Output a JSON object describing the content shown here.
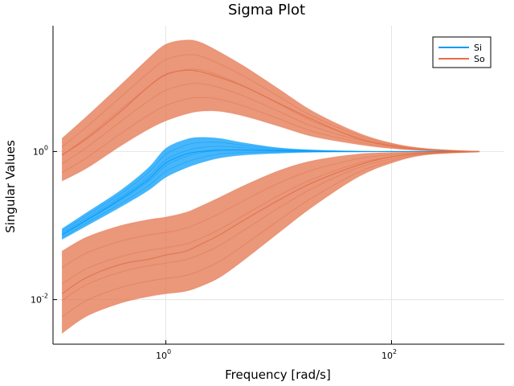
{
  "chart_data": {
    "type": "line",
    "title": "Sigma Plot",
    "xlabel": "Frequency [rad/s]",
    "ylabel": "Singular Values",
    "xscale": "log10",
    "yscale": "log10",
    "xlim": [
      0.1,
      1000
    ],
    "ylim": [
      0.0025,
      50
    ],
    "xticks": [
      {
        "value": 1,
        "base": "10",
        "exp": "0"
      },
      {
        "value": 100,
        "base": "10",
        "exp": "2"
      }
    ],
    "yticks": [
      {
        "value": 1,
        "base": "10",
        "exp": "0"
      },
      {
        "value": 0.01,
        "base": "10",
        "exp": "-2"
      }
    ],
    "grid": true,
    "legend_position": "top-right",
    "series": [
      {
        "name": "Si",
        "color": "#009af9",
        "x": [
          0.12,
          0.2,
          0.4,
          0.7,
          1.0,
          1.5,
          2.0,
          3.0,
          5.0,
          10,
          20,
          50,
          100,
          200,
          600
        ],
        "band_upper": [
          0.09,
          0.15,
          0.3,
          0.6,
          1.1,
          1.45,
          1.55,
          1.5,
          1.3,
          1.12,
          1.05,
          1.01,
          1.0,
          1.0,
          1.0
        ],
        "band_lower": [
          0.065,
          0.1,
          0.18,
          0.3,
          0.45,
          0.6,
          0.7,
          0.82,
          0.9,
          0.95,
          0.98,
          0.99,
          1.0,
          1.0,
          1.0
        ],
        "center": [
          0.075,
          0.12,
          0.23,
          0.42,
          0.7,
          0.92,
          1.0,
          1.05,
          1.05,
          1.03,
          1.01,
          1.0,
          1.0,
          1.0,
          1.0
        ]
      },
      {
        "name": "So",
        "color": "#e26f46",
        "x": [
          0.12,
          0.2,
          0.4,
          0.7,
          1.0,
          1.5,
          2.0,
          3.0,
          5.0,
          10,
          20,
          50,
          100,
          200,
          600
        ],
        "band_upper": [
          1.5,
          3.0,
          8.0,
          18.0,
          28.0,
          32.0,
          30.0,
          22.0,
          14.0,
          7.0,
          3.5,
          1.8,
          1.3,
          1.1,
          1.0
        ],
        "band_lower": [
          0.4,
          0.6,
          1.2,
          2.0,
          2.6,
          3.2,
          3.5,
          3.5,
          3.0,
          2.2,
          1.6,
          1.25,
          1.1,
          1.03,
          1.0
        ],
        "center": [
          0.9,
          1.5,
          3.5,
          7.5,
          11.0,
          12.5,
          12.0,
          10.0,
          7.5,
          4.5,
          2.7,
          1.5,
          1.2,
          1.05,
          1.0
        ]
      },
      {
        "name": "So",
        "color": "#e26f46",
        "x": [
          0.12,
          0.2,
          0.4,
          0.7,
          1.0,
          1.5,
          2.0,
          3.0,
          5.0,
          10,
          20,
          50,
          100,
          200,
          600
        ],
        "band_upper": [
          0.045,
          0.07,
          0.1,
          0.12,
          0.13,
          0.15,
          0.18,
          0.24,
          0.35,
          0.55,
          0.75,
          0.92,
          0.97,
          0.99,
          1.0
        ],
        "band_lower": [
          0.0035,
          0.006,
          0.009,
          0.011,
          0.012,
          0.013,
          0.015,
          0.02,
          0.035,
          0.08,
          0.18,
          0.45,
          0.7,
          0.9,
          0.99
        ],
        "center": [
          0.012,
          0.02,
          0.03,
          0.035,
          0.04,
          0.045,
          0.055,
          0.075,
          0.12,
          0.22,
          0.38,
          0.65,
          0.85,
          0.95,
          1.0
        ]
      }
    ],
    "legend": [
      {
        "label": "Si",
        "color": "#009af9"
      },
      {
        "label": "So",
        "color": "#e26f46"
      }
    ]
  }
}
